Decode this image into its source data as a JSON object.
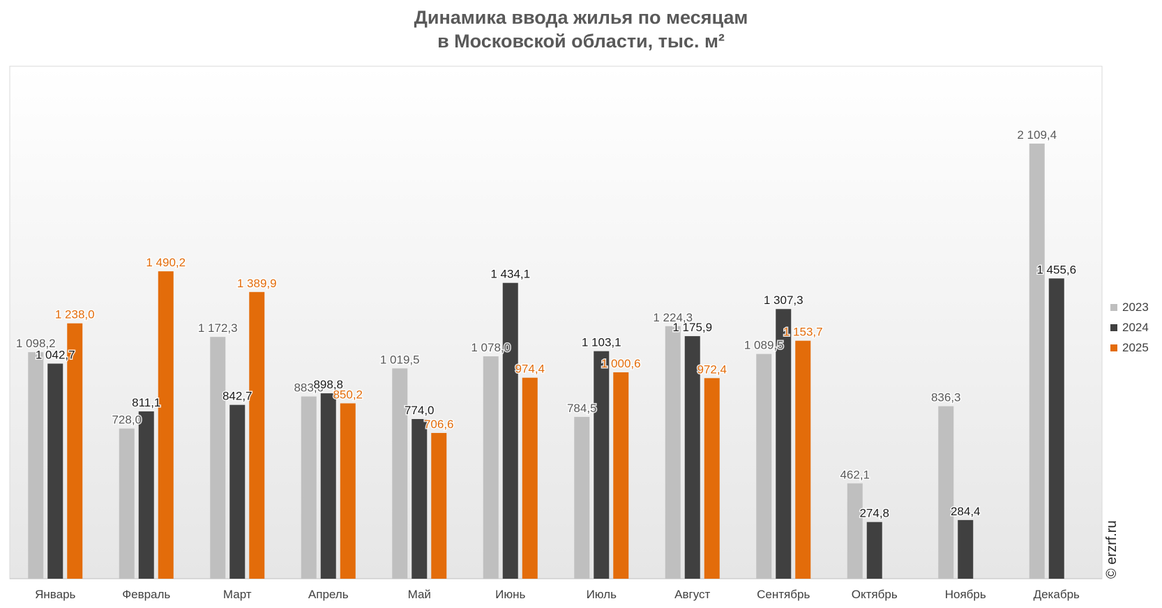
{
  "title": {
    "line1": "Динамика ввода жилья по месяцам",
    "line2": "в Московской области, тыс. м²"
  },
  "watermark": "© erzrf.ru",
  "chart_data": {
    "type": "bar",
    "title": "Динамика ввода жилья по месяцам в Московской области, тыс. м²",
    "xlabel": "",
    "ylabel": "",
    "ylim": [
      0,
      2300
    ],
    "grid": false,
    "legend_position": "right",
    "categories": [
      "Январь",
      "Февраль",
      "Март",
      "Апрель",
      "Май",
      "Июнь",
      "Июль",
      "Август",
      "Сентябрь",
      "Октябрь",
      "Ноябрь",
      "Декабрь"
    ],
    "series": [
      {
        "name": "2023",
        "color": "#bfbfbf",
        "label_color": "#595959",
        "values": [
          1098.2,
          728.0,
          1172.3,
          883.6,
          1019.5,
          1078.0,
          784.5,
          1224.3,
          1089.5,
          462.1,
          836.3,
          2109.4
        ],
        "labels": [
          "1 098,2",
          "728,0",
          "1 172,3",
          "883,6",
          "1 019,5",
          "1 078,0",
          "784,5",
          "1 224,3",
          "1 089,5",
          "462,1",
          "836,3",
          "2 109,4"
        ]
      },
      {
        "name": "2024",
        "color": "#404040",
        "label_color": "#1a1a1a",
        "values": [
          1042.7,
          811.1,
          842.7,
          898.8,
          774.0,
          1434.1,
          1103.1,
          1175.9,
          1307.3,
          274.8,
          284.4,
          1455.6
        ],
        "labels": [
          "1 042,7",
          "811,1",
          "842,7",
          "898,8",
          "774,0",
          "1 434,1",
          "1 103,1",
          "1 175,9",
          "1 307,3",
          "274,8",
          "284,4",
          "1 455,6"
        ]
      },
      {
        "name": "2025",
        "color": "#e36c0a",
        "label_color": "#e36c0a",
        "values": [
          1238.0,
          1490.2,
          1389.9,
          850.2,
          706.6,
          974.4,
          1000.6,
          972.4,
          1153.7,
          null,
          null,
          null
        ],
        "labels": [
          "1 238,0",
          "1 490,2",
          "1 389,9",
          "850,2",
          "706,6",
          "974,4",
          "1 000,6",
          "972,4",
          "1 153,7",
          null,
          null,
          null
        ]
      }
    ]
  }
}
